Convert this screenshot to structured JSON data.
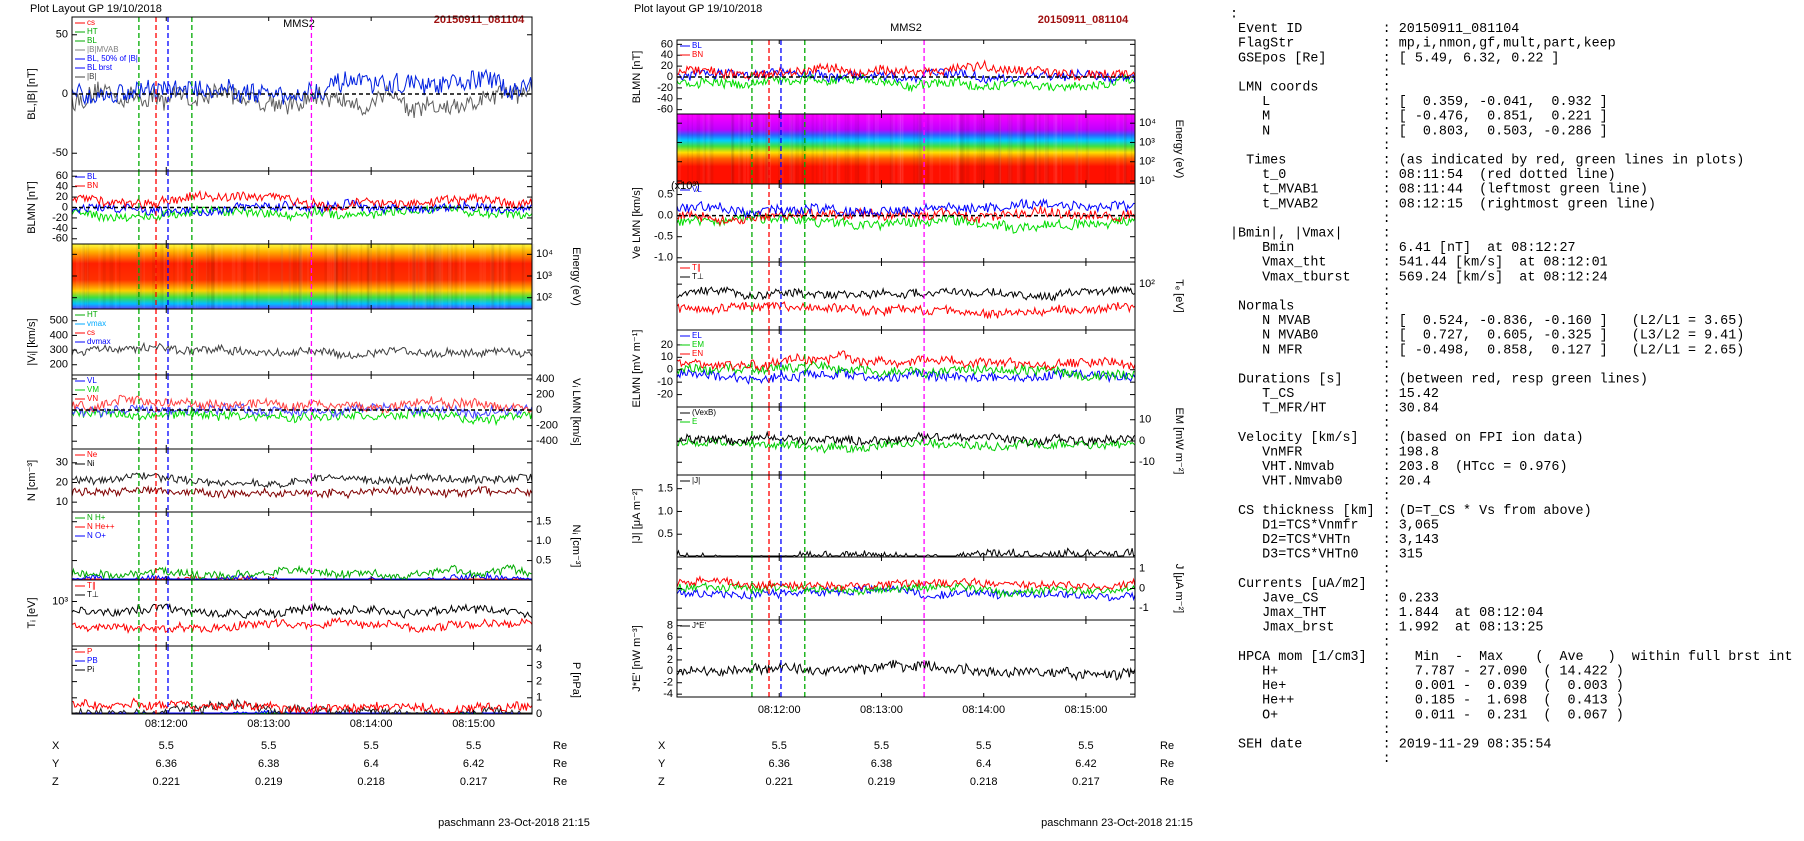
{
  "left": {
    "header": "Plot Layout GP 19/10/2018",
    "title": "MMS2",
    "event": "20150911_081104",
    "xlim": [
      11.08,
      15.57
    ],
    "xticks": [
      {
        "value": 12,
        "label": "08:12:00"
      },
      {
        "value": 13,
        "label": "08:13:00"
      },
      {
        "value": 14,
        "label": "08:14:00"
      },
      {
        "value": 15,
        "label": "08:15:00"
      }
    ],
    "vlines": [
      {
        "value": 11.733,
        "color": "#00aa00"
      },
      {
        "value": 11.9,
        "color": "#ff0000"
      },
      {
        "value": 12.017,
        "color": "#0000ff"
      },
      {
        "value": 12.25,
        "color": "#00aa00"
      },
      {
        "value": 13.417,
        "color": "#ff00ff"
      }
    ],
    "panels": [
      {
        "ylabel": "BL,|B| [nT]",
        "side": "left",
        "ylim": [
          -65,
          65
        ],
        "ticks": [
          -50,
          0,
          50
        ],
        "zero_line": true,
        "legend": [
          {
            "name": "cs",
            "color": "#ff0000"
          },
          {
            "name": "HT",
            "color": "#00aa00"
          },
          {
            "name": "BL",
            "color": "#00aa00"
          },
          {
            "name": "|B|MVAB",
            "color": "#808080"
          },
          {
            "name": "BL, 50% of |B|",
            "color": "#0000ff"
          },
          {
            "name": "BL brst",
            "color": "#0000ff"
          },
          {
            "name": "|B|",
            "color": "#404040"
          }
        ],
        "colors": [
          "#606060",
          "#0020e0"
        ]
      },
      {
        "ylabel": "BLMN [nT]",
        "side": "left",
        "ylim": [
          -70,
          70
        ],
        "ticks": [
          -60,
          -40,
          -20,
          0,
          20,
          40,
          60
        ],
        "zero_line": true,
        "legend": [
          {
            "name": "BL",
            "color": "#0000ff"
          },
          {
            "name": "BN",
            "color": "#ff0000"
          }
        ],
        "colors": [
          "#00dd00",
          "#0000ff",
          "#ff0000"
        ]
      },
      {
        "ylabel": "Energy (eV)",
        "side": "right",
        "kind": "spectrogram",
        "gradient": "specA",
        "log": true,
        "ylim": [
          30,
          30000
        ],
        "ticks": [
          {
            "value": 100,
            "label": "10²"
          },
          {
            "value": 1000,
            "label": "10³"
          },
          {
            "value": 10000,
            "label": "10⁴"
          }
        ]
      },
      {
        "ylabel": "|Vᵢ| [km/s]",
        "side": "left",
        "ylim": [
          130,
          580
        ],
        "ticks": [
          200,
          300,
          400,
          500
        ],
        "legend": [
          {
            "name": "HT",
            "color": "#00aa00"
          },
          {
            "name": "vmax",
            "color": "#00aaff"
          },
          {
            "name": "cs",
            "color": "#ff0000"
          },
          {
            "name": "dvmax",
            "color": "#0000ff"
          }
        ],
        "colors": [
          "#404040"
        ]
      },
      {
        "ylabel": "Vᵢ LMN [km/s]",
        "side": "right",
        "ylim": [
          -500,
          450
        ],
        "ticks": [
          -400,
          -200,
          0,
          200,
          400
        ],
        "zero_line": true,
        "legend": [
          {
            "name": "VL",
            "color": "#0000ff"
          },
          {
            "name": "VM",
            "color": "#00cc00"
          },
          {
            "name": "VN",
            "color": "#ff0000"
          }
        ],
        "colors": [
          "#00dd00",
          "#4040ff",
          "#ff4040"
        ]
      },
      {
        "ylabel": "N [cm⁻³]",
        "side": "left",
        "ylim": [
          5,
          37
        ],
        "ticks": [
          10,
          20,
          30
        ],
        "legend": [
          {
            "name": "Ne",
            "color": "#ff0000"
          },
          {
            "name": "Ni",
            "color": "#000000"
          }
        ],
        "colors": [
          "#800000",
          "#202020"
        ]
      },
      {
        "ylabel": "Nᵢ [cm⁻³]",
        "side": "right",
        "ylim": [
          0,
          1.75
        ],
        "ticks": [
          0.5,
          {
            "value": 1,
            "label": "1.0"
          },
          1.5
        ],
        "legend": [
          {
            "name": "N H+",
            "color": "#00aa00"
          },
          {
            "name": "N He++",
            "color": "#ff0000"
          },
          {
            "name": "N O+",
            "color": "#0000ff"
          }
        ],
        "colors": [
          "#ff2020",
          "#0000ff",
          "#00aa00"
        ]
      },
      {
        "ylabel": "Tᵢ [eV]",
        "side": "left",
        "log": true,
        "ylim": [
          150,
          2500
        ],
        "ticks": [
          {
            "value": 1000,
            "label": "10³"
          }
        ],
        "legend": [
          {
            "name": "T∥",
            "color": "#ff0000"
          },
          {
            "name": "T⊥",
            "color": "#000000"
          }
        ],
        "colors": [
          "#ff0000",
          "#000000"
        ]
      },
      {
        "ylabel": "P [nPa]",
        "side": "right",
        "ylim": [
          0,
          4.2
        ],
        "ticks": [
          0,
          1,
          2,
          3,
          4
        ],
        "legend": [
          {
            "name": "P",
            "color": "#ff0000"
          },
          {
            "name": "PB",
            "color": "#0000ff"
          },
          {
            "name": "Pi",
            "color": "#000000"
          }
        ],
        "colors": [
          "#00dd00",
          "#0000ff",
          "#202020",
          "#ff0000"
        ]
      }
    ],
    "coords": [
      {
        "name": "X",
        "values": [
          5.5,
          5.5,
          5.5,
          5.5
        ],
        "unit": "Re"
      },
      {
        "name": "Y",
        "values": [
          6.36,
          6.38,
          6.4,
          6.42
        ],
        "unit": "Re"
      },
      {
        "name": "Z",
        "values": [
          0.221,
          0.219,
          0.218,
          0.217
        ],
        "unit": "Re"
      }
    ],
    "footer": "paschmann 23-Oct-2018 21:15"
  },
  "middle": {
    "header": "Plot layout GP 19/10/2018",
    "title": "MMS2",
    "event": "20150911_081104",
    "xlim": [
      11.0,
      15.48
    ],
    "xticks": [
      {
        "value": 12,
        "label": "08:12:00"
      },
      {
        "value": 13,
        "label": "08:13:00"
      },
      {
        "value": 14,
        "label": "08:14:00"
      },
      {
        "value": 15,
        "label": "08:15:00"
      }
    ],
    "vlines": [
      {
        "value": 11.733,
        "color": "#00aa00"
      },
      {
        "value": 11.9,
        "color": "#ff0000"
      },
      {
        "value": 12.017,
        "color": "#0000ff"
      },
      {
        "value": 12.25,
        "color": "#00aa00"
      },
      {
        "value": 13.417,
        "color": "#ff00ff"
      }
    ],
    "panels": [
      {
        "ylabel": "BLMN [nT]",
        "side": "left",
        "ylim": [
          -68,
          68
        ],
        "ticks": [
          -60,
          -40,
          -20,
          0,
          20,
          40,
          60
        ],
        "zero_line": true,
        "legend": [
          {
            "name": "BL",
            "color": "#0000ff"
          },
          {
            "name": "BN",
            "color": "#ff0000"
          }
        ],
        "colors": [
          "#00dd00",
          "#0000ff",
          "#ff0000"
        ]
      },
      {
        "ylabel": "Energy (eV)",
        "side": "right",
        "kind": "spectrogram",
        "gradient": "specB",
        "log": true,
        "ylim": [
          7,
          30000
        ],
        "ticks": [
          {
            "value": 10,
            "label": "10¹"
          },
          {
            "value": 100,
            "label": "10²"
          },
          {
            "value": 1000,
            "label": "10³"
          },
          {
            "value": 10000,
            "label": "10⁴"
          }
        ]
      },
      {
        "ylabel": "Ve LMN [km/s]",
        "multiplier": "(x10³)",
        "side": "left",
        "ylim": [
          -1.1,
          0.75
        ],
        "ticks": [
          {
            "value": -1,
            "label": "-1.0"
          },
          -0.5,
          {
            "value": 0,
            "label": "0.0"
          },
          0.5
        ],
        "zero_line": true,
        "legend": [
          {
            "name": "VL",
            "color": "#0000ff"
          }
        ],
        "colors": [
          "#00dd00",
          "#ff0000",
          "#0000ff"
        ]
      },
      {
        "ylabel": "Tₑ [eV]",
        "side": "right",
        "log": true,
        "ylim": [
          15,
          250
        ],
        "ticks": [
          {
            "value": 100,
            "label": "10²"
          }
        ],
        "legend": [
          {
            "name": "T∥",
            "color": "#ff0000"
          },
          {
            "name": "T⊥",
            "color": "#000000"
          }
        ],
        "colors": [
          "#ff0000",
          "#000000"
        ]
      },
      {
        "ylabel": "ELMN [mV m⁻¹]",
        "side": "left",
        "ylim": [
          -30,
          32
        ],
        "ticks": [
          -20,
          -10,
          0,
          10,
          20
        ],
        "legend": [
          {
            "name": "EL",
            "color": "#0000ff"
          },
          {
            "name": "EM",
            "color": "#00cc00"
          },
          {
            "name": "EN",
            "color": "#ff0000"
          }
        ],
        "colors": [
          "#0000ff",
          "#00cc00",
          "#ff0000"
        ]
      },
      {
        "ylabel": "EM [mW m⁻²]",
        "side": "right",
        "ylim": [
          -16,
          16
        ],
        "ticks": [
          -10,
          0,
          10
        ],
        "legend": [
          {
            "name": "(VexB)",
            "color": "#000000"
          },
          {
            "name": "E",
            "color": "#00cc00"
          }
        ],
        "colors": [
          "#00cc00",
          "#000000"
        ]
      },
      {
        "ylabel": "|J| [μA m⁻²]",
        "side": "left",
        "ylim": [
          0,
          1.8
        ],
        "ticks": [
          0.5,
          {
            "value": 1,
            "label": "1.0"
          },
          1.5
        ],
        "legend": [
          {
            "name": "|J|",
            "color": "#000000"
          }
        ],
        "colors": [
          "#000000"
        ]
      },
      {
        "ylabel": "J [μA m⁻²]",
        "side": "right",
        "ylim": [
          -1.6,
          1.6
        ],
        "ticks": [
          -1,
          0,
          1
        ],
        "colors": [
          "#0000ff",
          "#00cc00",
          "#ff0000"
        ]
      },
      {
        "ylabel": "J*E' [nW m⁻³]",
        "side": "left",
        "ylim": [
          -4.5,
          9
        ],
        "ticks": [
          -4,
          -2,
          0,
          2,
          4,
          6,
          8
        ],
        "legend": [
          {
            "name": "J*E'",
            "color": "#000000"
          }
        ],
        "colors": [
          "#000000"
        ]
      }
    ],
    "coords": [
      {
        "name": "X",
        "values": [
          5.5,
          5.5,
          5.5,
          5.5
        ],
        "unit": "Re"
      },
      {
        "name": "Y",
        "values": [
          6.36,
          6.38,
          6.4,
          6.42
        ],
        "unit": "Re"
      },
      {
        "name": "Z",
        "values": [
          0.221,
          0.219,
          0.218,
          0.217
        ],
        "unit": "Re"
      }
    ],
    "footer": "paschmann 23-Oct-2018 21:15"
  },
  "info": {
    "lines": [
      ":",
      " Event ID          : 20150911_081104",
      " FlagStr           : mp,i,nmon,gf,mult,part,keep",
      " GSEpos [Re]       : [ 5.49, 6.32, 0.22 ]",
      "                   :",
      " LMN coords        :",
      "    L              : [  0.359, -0.041,  0.932 ]",
      "    M              : [ -0.476,  0.851,  0.221 ]",
      "    N              : [  0.803,  0.503, -0.286 ]",
      "                   :",
      "  Times            : (as indicated by red, green lines in plots)",
      "    t_0            : 08:11:54  (red dotted line)",
      "    t_MVAB1        : 08:11:44  (leftmost green line)",
      "    t_MVAB2        : 08:12:15  (rightmost green line)",
      "                   :",
      "|Bmin|, |Vmax|     :",
      "    Bmin           : 6.41 [nT]  at 08:12:27",
      "    Vmax_tht       : 541.44 [km/s]  at 08:12:01",
      "    Vmax_tburst    : 569.24 [km/s]  at 08:12:24",
      "                   :",
      " Normals           :",
      "    N MVAB         : [  0.524, -0.836, -0.160 ]   (L2/L1 = 3.65)",
      "    N MVAB0        : [  0.727,  0.605, -0.325 ]   (L3/L2 = 9.41)",
      "    N MFR          : [ -0.498,  0.858,  0.127 ]   (L2/L1 = 2.65)",
      "                   :",
      " Durations [s]     : (between red, resp green lines)",
      "    T_CS           : 15.42",
      "    T_MFR/HT       : 30.84",
      "                   :",
      " Velocity [km/s]   : (based on FPI ion data)",
      "    VnMFR          : 198.8",
      "    VHT.Nmvab      : 203.8  (HTcc = 0.976)",
      "    VHT.Nmvab0     : 20.4",
      "                   :",
      " CS thickness [km] : (D=T_CS * Vs from above)",
      "    D1=TCS*Vnmfr   : 3,065",
      "    D2=TCS*VHTn    : 3,143",
      "    D3=TCS*VHTn0   : 315",
      "                   :",
      " Currents [uA/m2]  :",
      "    Jave_CS        : 0.233",
      "    Jmax_THT       : 1.844  at 08:12:04",
      "    Jmax_brst      : 1.992  at 08:13:25",
      "                   :",
      " HPCA mom [1/cm3]  :   Min  -  Max    (  Ave   )  within full brst int",
      "    H+             :   7.787 - 27.090  ( 14.422 )",
      "    He+            :   0.001 -  0.039  (  0.003 )",
      "    He++           :   0.185 -  1.698  (  0.413 )",
      "    O+             :   0.011 -  0.231  (  0.067 )",
      "                   :",
      " SEH date          : 2019-11-29 08:35:54",
      "                   :"
    ]
  }
}
